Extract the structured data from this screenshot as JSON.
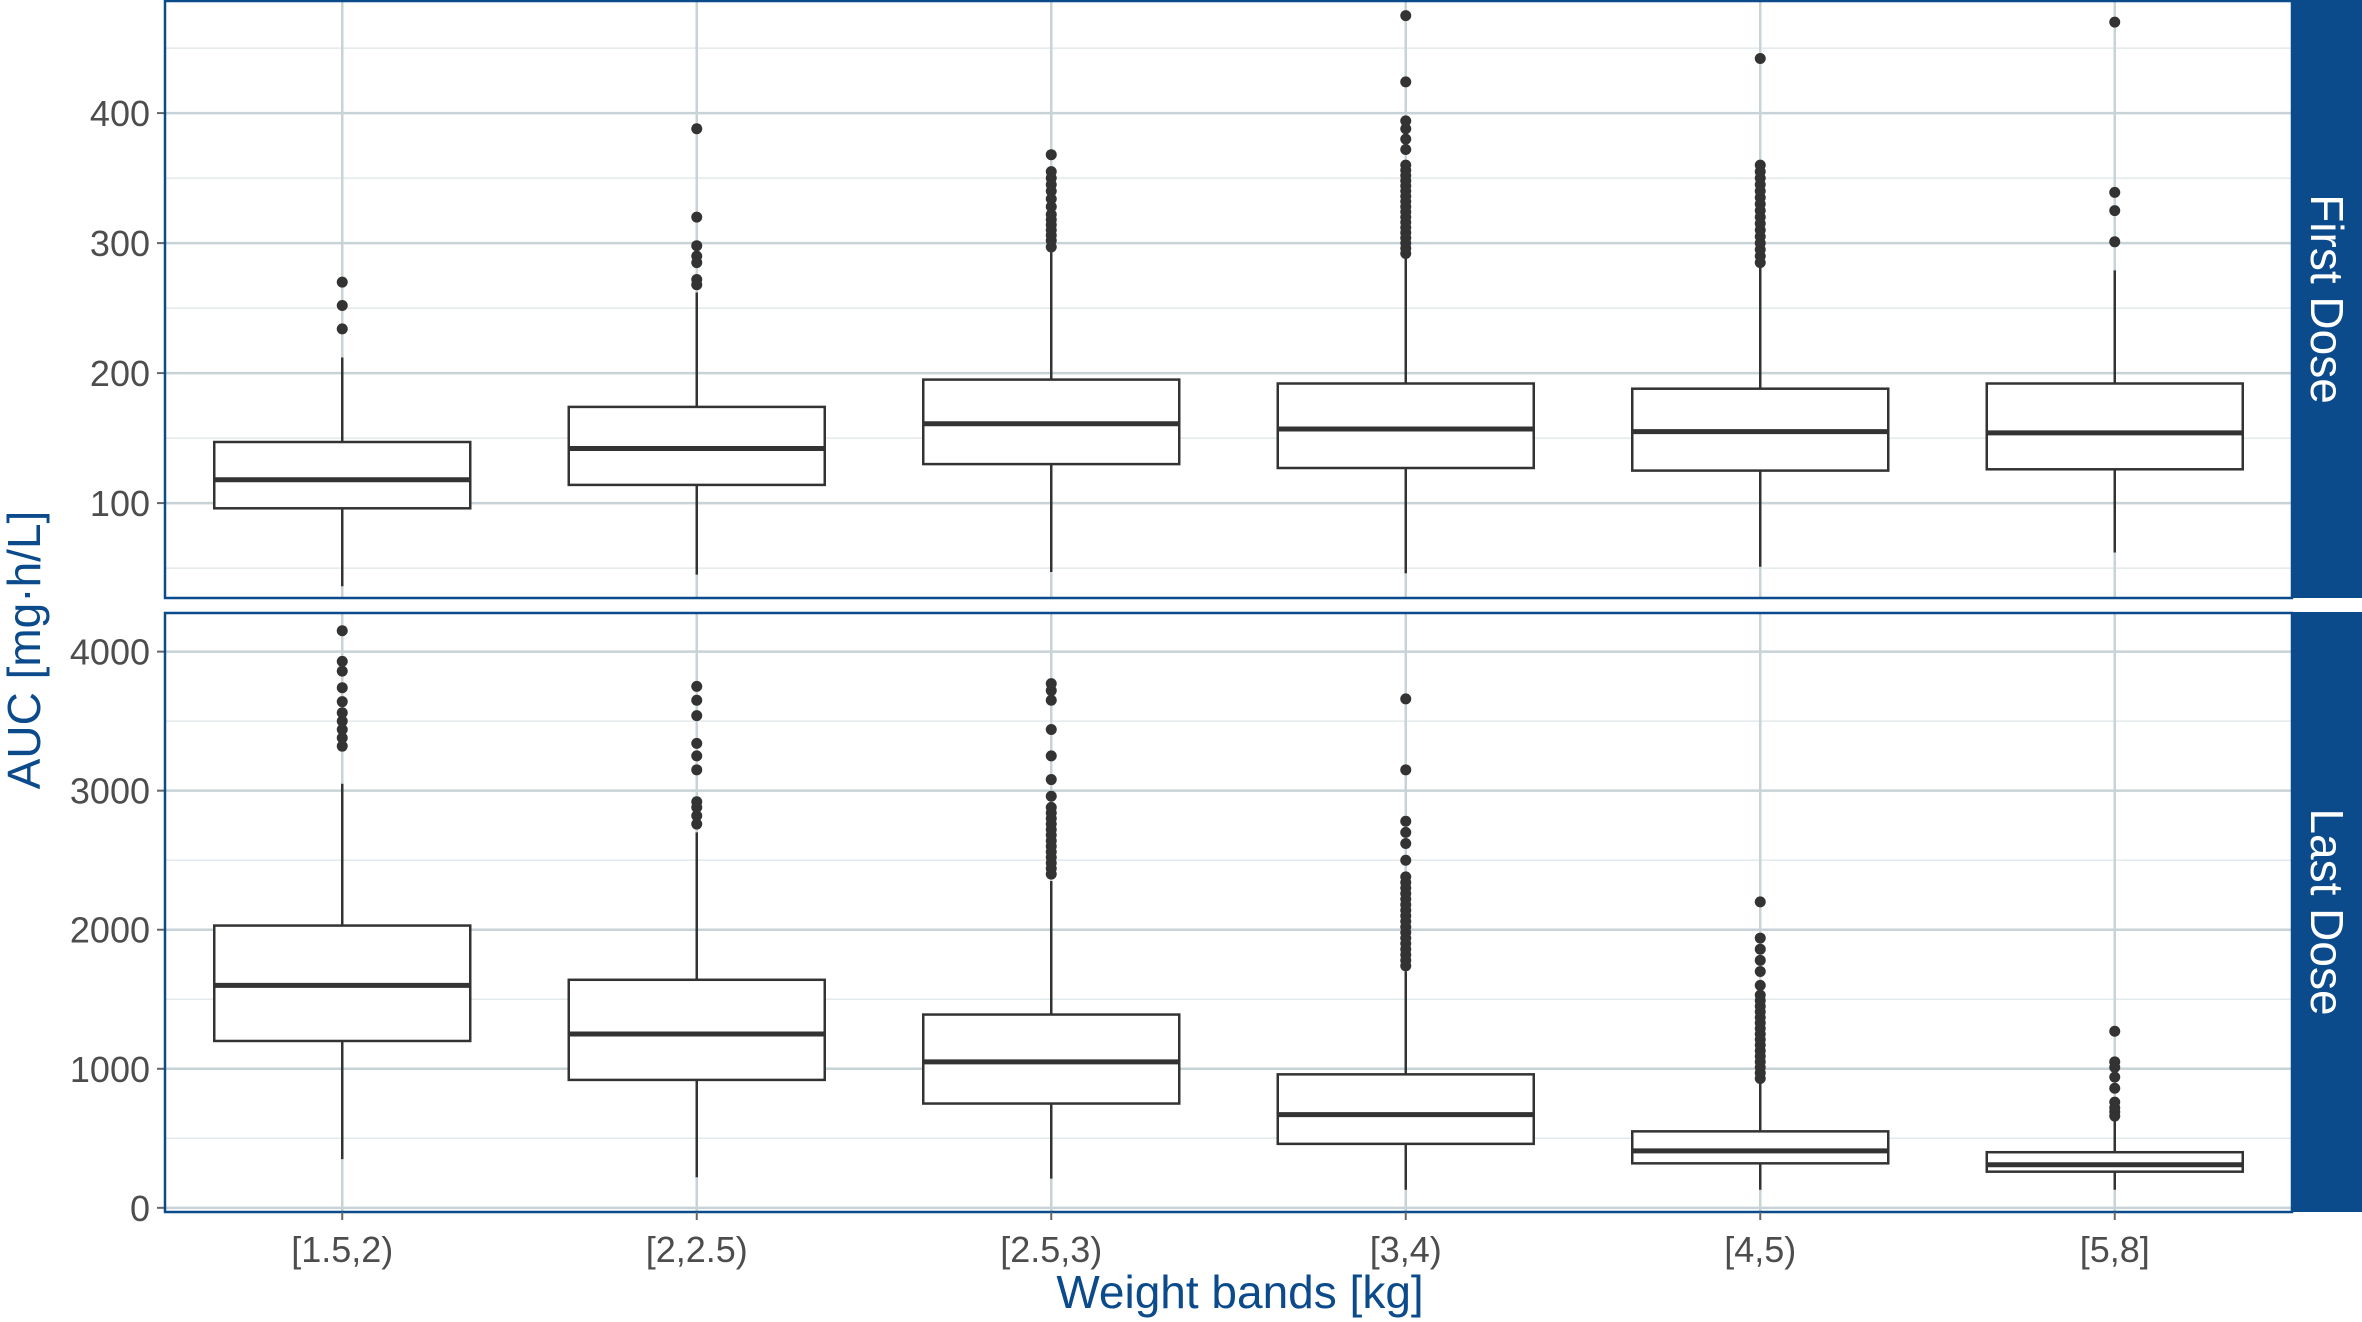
{
  "chart_data": {
    "type": "boxplot",
    "xlabel": "Weight bands [kg]",
    "ylabel": "AUC [mg·h/L]",
    "categories": [
      "[1.5,2)",
      "[2,2.5)",
      "[2.5,3)",
      "[3,4)",
      "[4,5)",
      "[5,8]"
    ],
    "colors": {
      "strip": "#0b4a8b",
      "panel_border": "#0b4a8b",
      "axis_title": "#0b4a8b",
      "grid": "#c7d3d6",
      "box_line": "#333333",
      "tick_label": "#4d4d4d"
    },
    "grid": true,
    "panels": [
      {
        "name": "First Dose",
        "ylim": [
          27,
          487
        ],
        "yticks": [
          100,
          200,
          300,
          400
        ],
        "yminor": [
          50,
          150,
          250,
          350,
          450
        ],
        "boxes": [
          {
            "category": "[1.5,2)",
            "whisker_low": 36,
            "q1": 96,
            "median": 118,
            "q3": 147,
            "whisker_high": 212,
            "outliers": [
              234,
              252,
              270
            ]
          },
          {
            "category": "[2,2.5)",
            "whisker_low": 45,
            "q1": 114,
            "median": 142,
            "q3": 174,
            "whisker_high": 262,
            "outliers": [
              268,
              272,
              285,
              290,
              298,
              320,
              388
            ]
          },
          {
            "category": "[2.5,3)",
            "whisker_low": 47,
            "q1": 130,
            "median": 161,
            "q3": 195,
            "whisker_high": 293,
            "outliers": [
              297,
              302,
              306,
              310,
              314,
              318,
              322,
              328,
              334,
              340,
              345,
              350,
              355,
              368
            ]
          },
          {
            "category": "[3,4)",
            "whisker_low": 46,
            "q1": 127,
            "median": 157,
            "q3": 192,
            "whisker_high": 289,
            "outliers": [
              292,
              296,
              300,
              304,
              308,
              312,
              316,
              320,
              324,
              328,
              332,
              336,
              340,
              344,
              348,
              352,
              356,
              360,
              372,
              380,
              388,
              394,
              424,
              475
            ]
          },
          {
            "category": "[4,5)",
            "whisker_low": 51,
            "q1": 125,
            "median": 155,
            "q3": 188,
            "whisker_high": 282,
            "outliers": [
              285,
              290,
              295,
              300,
              305,
              310,
              315,
              320,
              325,
              330,
              335,
              340,
              345,
              350,
              355,
              360,
              442
            ]
          },
          {
            "category": "[5,8]",
            "whisker_low": 62,
            "q1": 126,
            "median": 154,
            "q3": 192,
            "whisker_high": 279,
            "outliers": [
              301,
              325,
              339,
              470
            ]
          }
        ]
      },
      {
        "name": "Last Dose",
        "ylim": [
          -30,
          4285
        ],
        "yticks": [
          0,
          1000,
          2000,
          3000,
          4000
        ],
        "yminor": [
          500,
          1500,
          2500,
          3500
        ],
        "boxes": [
          {
            "category": "[1.5,2)",
            "whisker_low": 350,
            "q1": 1200,
            "median": 1600,
            "q3": 2030,
            "whisker_high": 3050,
            "outliers": [
              3320,
              3380,
              3440,
              3500,
              3560,
              3640,
              3740,
              3860,
              3930,
              4150
            ]
          },
          {
            "category": "[2,2.5)",
            "whisker_low": 220,
            "q1": 920,
            "median": 1250,
            "q3": 1640,
            "whisker_high": 2700,
            "outliers": [
              2760,
              2820,
              2880,
              2920,
              3150,
              3250,
              3340,
              3540,
              3650,
              3750
            ]
          },
          {
            "category": "[2.5,3)",
            "whisker_low": 210,
            "q1": 750,
            "median": 1050,
            "q3": 1390,
            "whisker_high": 2350,
            "outliers": [
              2400,
              2440,
              2480,
              2520,
              2560,
              2600,
              2640,
              2680,
              2720,
              2760,
              2800,
              2840,
              2880,
              2960,
              3080,
              3250,
              3440,
              3650,
              3720,
              3770
            ]
          },
          {
            "category": "[3,4)",
            "whisker_low": 130,
            "q1": 460,
            "median": 670,
            "q3": 960,
            "whisker_high": 1700,
            "outliers": [
              1740,
              1780,
              1820,
              1860,
              1900,
              1940,
              1980,
              2020,
              2060,
              2100,
              2140,
              2180,
              2220,
              2260,
              2300,
              2340,
              2380,
              2500,
              2620,
              2700,
              2780,
              3150,
              3660
            ]
          },
          {
            "category": "[4,5)",
            "whisker_low": 130,
            "q1": 320,
            "median": 410,
            "q3": 550,
            "whisker_high": 900,
            "outliers": [
              930,
              970,
              1010,
              1050,
              1090,
              1130,
              1170,
              1210,
              1250,
              1290,
              1330,
              1370,
              1410,
              1450,
              1490,
              1530,
              1600,
              1700,
              1780,
              1860,
              1940,
              2200
            ]
          },
          {
            "category": "[5,8]",
            "whisker_low": 130,
            "q1": 260,
            "median": 310,
            "q3": 400,
            "whisker_high": 640,
            "outliers": [
              660,
              690,
              720,
              760,
              860,
              940,
              1010,
              1050,
              1270
            ]
          }
        ]
      }
    ]
  }
}
